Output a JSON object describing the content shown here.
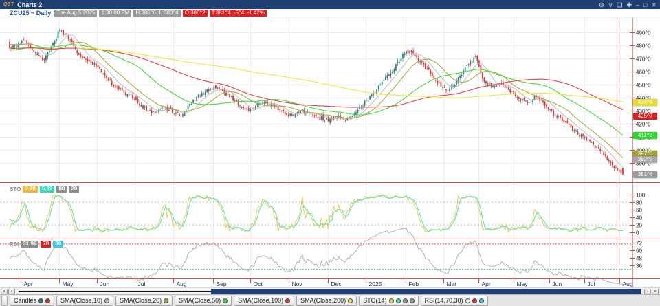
{
  "window": {
    "logo": "QST",
    "title": "Charts 2"
  },
  "titlebar_icons": [
    {
      "name": "gear-icon",
      "glyph": "⚙"
    },
    {
      "name": "chevron-down-icon",
      "glyph": "∨"
    },
    {
      "name": "copy-icon",
      "glyph": "❏"
    },
    {
      "name": "move-icon",
      "glyph": "✚"
    },
    {
      "name": "minimize-icon",
      "glyph": "–"
    },
    {
      "name": "restore-icon",
      "glyph": "□"
    },
    {
      "name": "close-icon",
      "glyph": "✕"
    }
  ],
  "infobar": {
    "symbol": "ZCU25 ~ Daily",
    "badges": [
      {
        "text": "Tue Aug 5 2025",
        "type": "gray"
      },
      {
        "text": "1:30:00 PM",
        "type": "gray"
      },
      {
        "text": "H:386^6  L:380^4",
        "type": "gray"
      },
      {
        "text": "O:386^2",
        "type": "red"
      },
      {
        "text": "T:381^4  -5^4  -1.42%",
        "type": "red"
      }
    ]
  },
  "chart_data": {
    "type": "candlestick",
    "symbol": "ZCU25",
    "interval": "Daily",
    "visible_range": "Apr 2024 - Aug 2025",
    "y_axis": {
      "labels": [
        "490^0",
        "480^0",
        "470^0",
        "460^0",
        "450^0",
        "440^0",
        "430^0",
        "420^0",
        "410^0",
        "400^0",
        "390^0"
      ],
      "values": [
        490,
        480,
        470,
        460,
        450,
        440,
        430,
        420,
        410,
        400,
        390
      ],
      "price_top": 501,
      "price_bottom": 376
    },
    "months": [
      {
        "label": "Apr",
        "pos": 0.033
      },
      {
        "label": "May",
        "pos": 0.093
      },
      {
        "label": "Jun",
        "pos": 0.153
      },
      {
        "label": "Jul",
        "pos": 0.213
      },
      {
        "label": "Aug",
        "pos": 0.274
      },
      {
        "label": "Sep",
        "pos": 0.337
      },
      {
        "label": "Oct",
        "pos": 0.396
      },
      {
        "label": "Nov",
        "pos": 0.457
      },
      {
        "label": "Dec",
        "pos": 0.518
      },
      {
        "label": "2025",
        "pos": 0.578
      },
      {
        "label": "Feb",
        "pos": 0.641
      },
      {
        "label": "Mar",
        "pos": 0.701
      },
      {
        "label": "Apr",
        "pos": 0.757
      },
      {
        "label": "May",
        "pos": 0.812
      },
      {
        "label": "Jun",
        "pos": 0.868
      },
      {
        "label": "Jul",
        "pos": 0.924
      },
      {
        "label": "Aug",
        "pos": 0.979
      }
    ],
    "weekly_closes": [
      477,
      480,
      484,
      476,
      468,
      478,
      492,
      486,
      474,
      469,
      466,
      458,
      451,
      446,
      442,
      436,
      431,
      428,
      433,
      429,
      427,
      434,
      441,
      445,
      448,
      444,
      439,
      433,
      430,
      435,
      437,
      433,
      427,
      426,
      430,
      428,
      425,
      423,
      426,
      424,
      428,
      435,
      442,
      450,
      458,
      466,
      476,
      472,
      464,
      457,
      449,
      446,
      455,
      464,
      471,
      452,
      449,
      451,
      445,
      439,
      436,
      441,
      434,
      428,
      423,
      417,
      412,
      407,
      402,
      396,
      387,
      381.5
    ],
    "last_bar": {
      "open": 386.25,
      "high": 386.75,
      "low": 380.5,
      "close": 381.5
    },
    "colors": {
      "up": "#2a8080",
      "down": "#e03535",
      "grid": "#ededed",
      "axis_line": "#f29090",
      "tick": "#e04545",
      "separator": "#e04545",
      "month_label": "#16305e",
      "crosshair": "#e87878"
    },
    "crosshair_pos": 0.975,
    "overlays": [
      {
        "name": "SMA(Close,10)",
        "period": 10,
        "color": "#c0c0c0"
      },
      {
        "name": "SMA(Close,20)",
        "period": 20,
        "color": "#a8a845"
      },
      {
        "name": "SMA(Close,50)",
        "period": 50,
        "color": "#44d944"
      },
      {
        "name": "SMA(Close,100)",
        "period": 100,
        "color": "#e04343"
      },
      {
        "name": "SMA(Close,200)",
        "period": 200,
        "color": "#f0e63c"
      }
    ],
    "axis_badges": [
      {
        "text": "436^4",
        "price": 436.5,
        "bg": "#e8dd2e"
      },
      {
        "text": "425^7",
        "price": 425.875,
        "bg": "#cc2222"
      },
      {
        "text": "411^2",
        "price": 411.25,
        "bg": "#2fd42f"
      },
      {
        "text": "397^0",
        "price": 397.0,
        "bg": "#a3a32b"
      },
      {
        "text": "392^5",
        "price": 392.625,
        "bg": "#a8a8a8"
      },
      {
        "text": "381^4",
        "price": 381.5,
        "bg": "#9a9a9a"
      }
    ],
    "sto_pane": {
      "label": "STO",
      "period": 14,
      "badges": [
        {
          "text": "3.28",
          "bg": "#f0b83a"
        },
        {
          "text": "5.82",
          "bg": "#38dcc0"
        },
        {
          "text": "80",
          "bg": "#8f8f8f"
        },
        {
          "text": "20",
          "bg": "#8f8f8f"
        }
      ],
      "axis": [
        100,
        80,
        60,
        40,
        20,
        0
      ],
      "bands": [
        80,
        20
      ],
      "k_color": "#f2c94c",
      "d_color": "#4ae3c3"
    },
    "rsi_pane": {
      "label": "RSI",
      "period": 14,
      "badges": [
        {
          "text": "31.96",
          "bg": "#8f8f8f"
        },
        {
          "text": "70",
          "bg": "#e02020"
        },
        {
          "text": "30",
          "bg": "#38c8e0"
        }
      ],
      "axis": [
        72,
        60,
        48,
        36
      ],
      "upper": 70,
      "lower": 30,
      "line_color": "#b0b0b0",
      "upper_color": "#e05050",
      "lower_color": "#40d8e8"
    }
  },
  "scrollbar": {
    "left_buttons": [
      "«",
      "‹"
    ],
    "right_buttons": [
      "›",
      "»"
    ]
  },
  "legend": {
    "items": [
      {
        "label": "Candles",
        "dots": [
          "#2a8080",
          "#e03535"
        ]
      },
      {
        "label": "SMA(Close,10)",
        "dots": [
          "#c0c0c0"
        ]
      },
      {
        "label": "SMA(Close,20)",
        "dots": [
          "#a8a845"
        ]
      },
      {
        "label": "SMA(Close,50)",
        "dots": [
          "#44d944"
        ]
      },
      {
        "label": "SMA(Close,100)",
        "dots": [
          "#e04343"
        ]
      },
      {
        "label": "SMA(Close,200)",
        "dots": [
          "#f0e63c"
        ]
      },
      {
        "label": "STO(14)",
        "dots": [
          "#f2c94c",
          "#4ae3c3",
          "#9a9a9a",
          "#9a9a9a"
        ]
      },
      {
        "label": "RSI(14,70,30)",
        "dots": [
          "#ffffff",
          "#e03535",
          "#40d0e0"
        ]
      }
    ]
  }
}
